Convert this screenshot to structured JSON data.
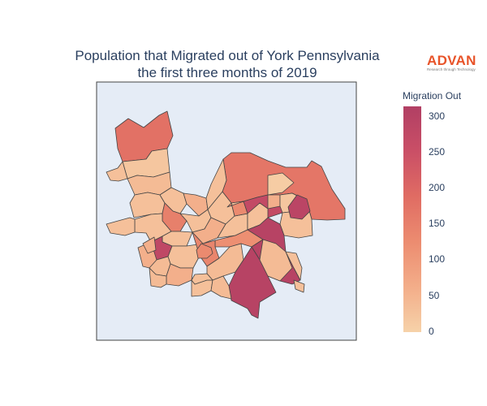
{
  "title": {
    "line1": "Population that Migrated out of York Pennsylvania",
    "line2": "the first three months of 2019"
  },
  "logo": {
    "wordmark": "ADVAN",
    "tagline": "Research through Technology",
    "color": "#e8542a"
  },
  "colorbar": {
    "title": "Migration Out",
    "min": 0,
    "max": 315,
    "ticks": [
      "300",
      "250",
      "200",
      "150",
      "100",
      "50",
      "0"
    ],
    "colorscale": [
      "#f6d2a9",
      "#f3ad89",
      "#ec8c70",
      "#e06c63",
      "#ca4f66",
      "#b13f64"
    ]
  },
  "map": {
    "background": "#e5ecf6",
    "outline_color": "#444444",
    "region_values": [
      180,
      20,
      30,
      170,
      40,
      30,
      30,
      60,
      150,
      30,
      30,
      30,
      30,
      30,
      30,
      60,
      30,
      30,
      280,
      270,
      60,
      20,
      30,
      10,
      30,
      130,
      290,
      120,
      30,
      140,
      40,
      60,
      300,
      40,
      30,
      40,
      300,
      40,
      130,
      60,
      60,
      40,
      30,
      30,
      30
    ]
  }
}
